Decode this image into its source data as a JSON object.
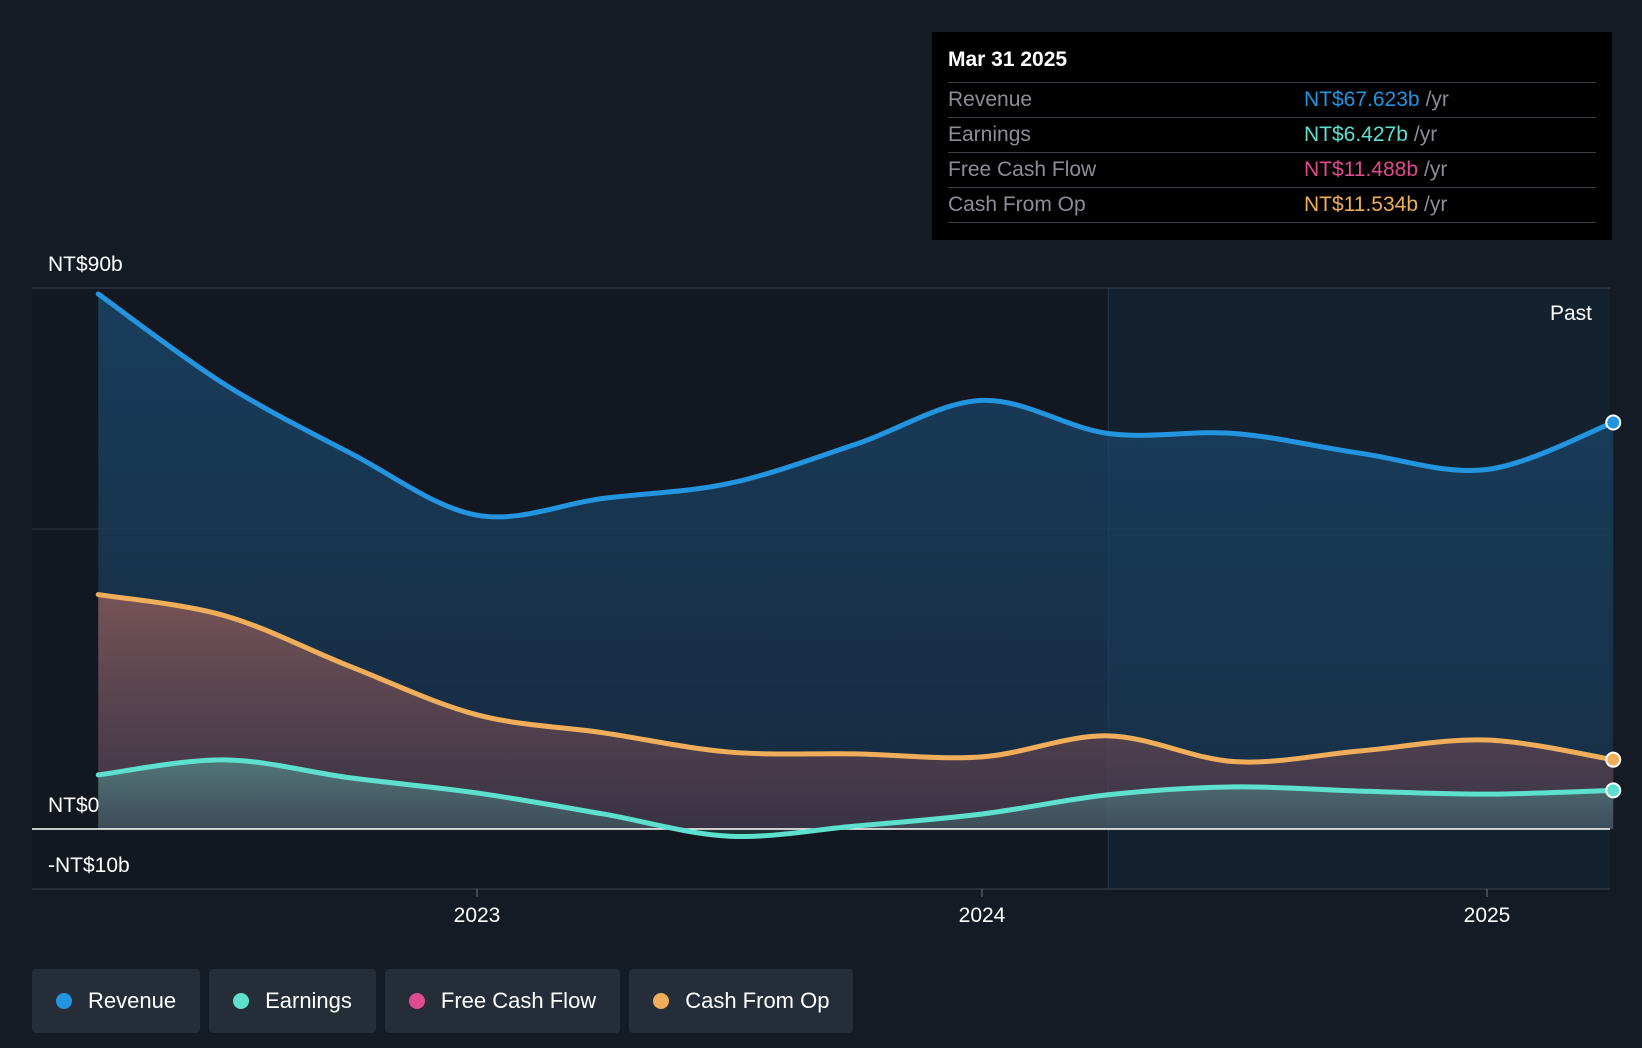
{
  "chart_data": {
    "type": "area",
    "ylim": [
      -10,
      90
    ],
    "y_axis_labels": [
      "NT$90b",
      "NT$0",
      "-NT$10b"
    ],
    "x_axis_labels": [
      "2023",
      "2024",
      "2025"
    ],
    "past_label": "Past",
    "series": [
      {
        "name": "Revenue",
        "color": "#2394df",
        "x": [
          2022.25,
          2022.5,
          2022.75,
          2023.0,
          2023.25,
          2023.5,
          2023.75,
          2024.0,
          2024.25,
          2024.5,
          2024.75,
          2025.0,
          2025.25
        ],
        "values": [
          89.0,
          74.0,
          62.5,
          52.2,
          55.0,
          57.5,
          64.0,
          71.3,
          65.8,
          65.8,
          62.5,
          59.8,
          67.623
        ]
      },
      {
        "name": "Earnings",
        "color": "#5ee0cf",
        "x": [
          2022.25,
          2022.5,
          2022.75,
          2023.0,
          2023.25,
          2023.5,
          2023.75,
          2024.0,
          2024.25,
          2024.5,
          2024.75,
          2025.0,
          2025.25
        ],
        "values": [
          9.0,
          11.5,
          8.5,
          6.0,
          2.5,
          -1.2,
          0.5,
          2.5,
          5.7,
          7.0,
          6.3,
          5.8,
          6.427
        ]
      },
      {
        "name": "Free Cash Flow",
        "color": "#e04a8f",
        "x": [],
        "values": []
      },
      {
        "name": "Cash From Op",
        "color": "#f0ae5a",
        "x": [
          2022.25,
          2022.5,
          2022.75,
          2023.0,
          2023.25,
          2023.5,
          2023.75,
          2024.0,
          2024.25,
          2024.5,
          2024.75,
          2025.0,
          2025.25
        ],
        "values": [
          39.0,
          35.5,
          27.0,
          19.0,
          16.0,
          12.8,
          12.5,
          12.0,
          15.5,
          11.2,
          13.0,
          14.8,
          11.534
        ]
      }
    ],
    "highlight_start_x": 2024.25
  },
  "tooltip": {
    "date": "Mar 31 2025",
    "rows": [
      {
        "label": "Revenue",
        "value": "NT$67.623b",
        "unit": "/yr",
        "color": "#2394df"
      },
      {
        "label": "Earnings",
        "value": "NT$6.427b",
        "unit": "/yr",
        "color": "#5ee0cf"
      },
      {
        "label": "Free Cash Flow",
        "value": "NT$11.488b",
        "unit": "/yr",
        "color": "#e04a8f"
      },
      {
        "label": "Cash From Op",
        "value": "NT$11.534b",
        "unit": "/yr",
        "color": "#f0ae5a"
      }
    ]
  },
  "legend": [
    {
      "label": "Revenue",
      "color": "#2394df"
    },
    {
      "label": "Earnings",
      "color": "#5ee0cf"
    },
    {
      "label": "Free Cash Flow",
      "color": "#e04a8f"
    },
    {
      "label": "Cash From Op",
      "color": "#f0ae5a"
    }
  ]
}
